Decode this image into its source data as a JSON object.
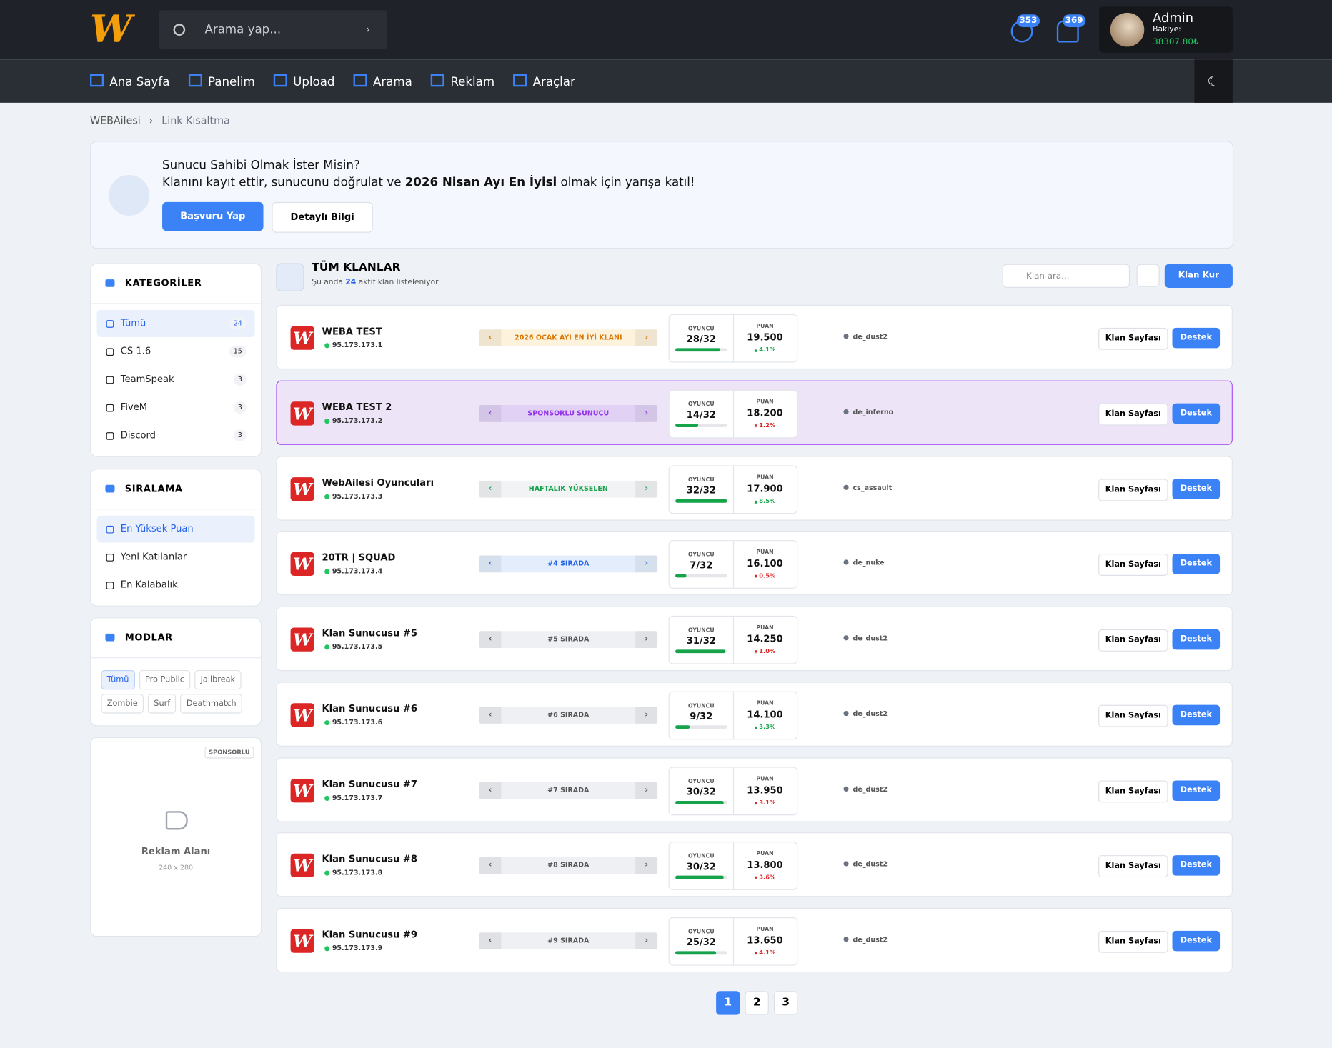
{
  "header": {
    "search_placeholder": "Arama yap...",
    "messages_count": "353",
    "notifications_count": "369",
    "user_name": "Admin",
    "balance_label": "Bakiye:",
    "balance": "38307.80₺"
  },
  "nav": [
    "Ana Sayfa",
    "Panelim",
    "Upload",
    "Arama",
    "Reklam",
    "Araçlar"
  ],
  "breadcrumb": [
    "WEBAilesi",
    "Link Kısaltma"
  ],
  "banner": {
    "title": "Sunucu Sahibi Olmak İster Misin?",
    "text_before": "Klanını kayıt ettir, sunucunu doğrulat ve ",
    "text_bold": "2026 Nisan Ayı En İyisi",
    "text_after": " olmak için yarışa katıl!",
    "primary_button": "Başvuru Yap",
    "secondary_button": "Detaylı Bilgi"
  },
  "categories": {
    "title": "KATEGORİLER",
    "active": 0,
    "items": [
      {
        "name": "Tümü",
        "count": 24
      },
      {
        "name": "CS 1.6",
        "count": 15
      },
      {
        "name": "TeamSpeak",
        "count": 3
      },
      {
        "name": "FiveM",
        "count": 3
      },
      {
        "name": "Discord",
        "count": 3
      }
    ]
  },
  "sorting": {
    "title": "SIRALAMA",
    "active": 0,
    "items": [
      "En Yüksek Puan",
      "Yeni Katılanlar",
      "En Kalabalık"
    ]
  },
  "modes": {
    "title": "MODLAR",
    "active": 0,
    "items": [
      "Tümü",
      "Pro Public",
      "Jailbreak",
      "Zombie",
      "Surf",
      "Deathmatch"
    ]
  },
  "ad": {
    "badge": "SPONSORLU",
    "title": "Reklam Alanı",
    "size": "240 x 280"
  },
  "list": {
    "title": "TÜM KLANLAR",
    "subtitle_before": "Şu anda ",
    "subtitle_count": "24",
    "subtitle_after": " aktif klan listeleniyor",
    "search_placeholder": "Klan ara...",
    "create_button": "Klan Kur",
    "players_label": "OYUNCU",
    "score_label": "PUAN",
    "page_button": "Klan Sayfası",
    "support_button": "Destek"
  },
  "servers": [
    {
      "name": "WEBA TEST",
      "ip": "95.173.173.1",
      "badge": "2026 OCAK AYI EN İYİ KLANI",
      "kind": "gold",
      "players": "28/32",
      "score": "19.500",
      "change": "4.1%",
      "trend": "up",
      "map": "de_dust2"
    },
    {
      "name": "WEBA TEST 2",
      "ip": "95.173.173.2",
      "badge": "SPONSORLU SUNUCU",
      "kind": "purple",
      "players": "14/32",
      "score": "18.200",
      "change": "1.2%",
      "trend": "down",
      "map": "de_inferno"
    },
    {
      "name": "WebAilesi Oyuncuları",
      "ip": "95.173.173.3",
      "badge": "HAFTALIK YÜKSELEN",
      "kind": "green",
      "players": "32/32",
      "score": "17.900",
      "change": "8.5%",
      "trend": "up",
      "map": "cs_assault"
    },
    {
      "name": "20TR | SQUAD",
      "ip": "95.173.173.4",
      "badge": "#4 SIRADA",
      "kind": "blue",
      "players": "7/32",
      "score": "16.100",
      "change": "0.5%",
      "trend": "down",
      "map": "de_nuke"
    },
    {
      "name": "Klan Sunucusu #5",
      "ip": "95.173.173.5",
      "badge": "#5 SIRADA",
      "kind": "gray",
      "players": "31/32",
      "score": "14.250",
      "change": "1.0%",
      "trend": "down",
      "map": "de_dust2"
    },
    {
      "name": "Klan Sunucusu #6",
      "ip": "95.173.173.6",
      "badge": "#6 SIRADA",
      "kind": "gray",
      "players": "9/32",
      "score": "14.100",
      "change": "3.3%",
      "trend": "up",
      "map": "de_dust2"
    },
    {
      "name": "Klan Sunucusu #7",
      "ip": "95.173.173.7",
      "badge": "#7 SIRADA",
      "kind": "gray",
      "players": "30/32",
      "score": "13.950",
      "change": "3.1%",
      "trend": "down",
      "map": "de_dust2"
    },
    {
      "name": "Klan Sunucusu #8",
      "ip": "95.173.173.8",
      "badge": "#8 SIRADA",
      "kind": "gray",
      "players": "30/32",
      "score": "13.800",
      "change": "3.6%",
      "trend": "down",
      "map": "de_dust2"
    },
    {
      "name": "Klan Sunucusu #9",
      "ip": "95.173.173.9",
      "badge": "#9 SIRADA",
      "kind": "gray",
      "players": "25/32",
      "score": "13.650",
      "change": "4.1%",
      "trend": "down",
      "map": "de_dust2"
    }
  ],
  "pagination": {
    "pages": [
      "1",
      "2",
      "3"
    ],
    "active": 0
  }
}
